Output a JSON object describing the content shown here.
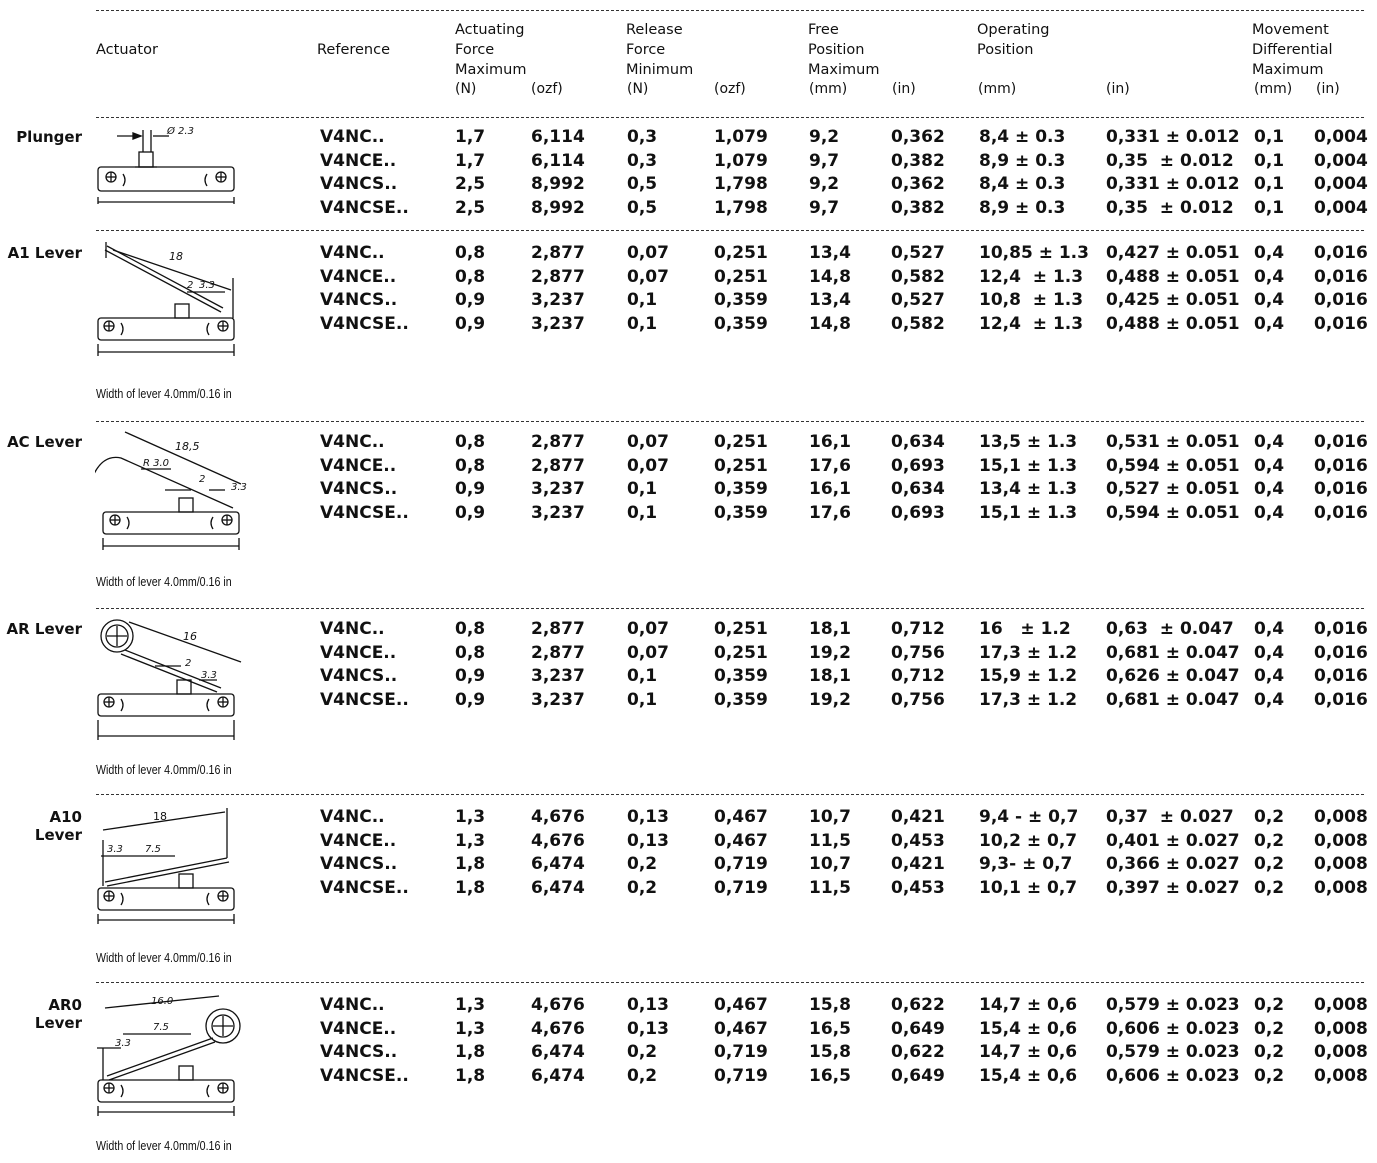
{
  "columns": {
    "actuator": "Actuator",
    "reference": "Reference",
    "actuating_force": "Actuating\nForce\nMaximum",
    "release_force": "Release\nForce\nMinimum",
    "free_position": "Free\nPosition\nMaximum",
    "operating_position": "Operating\nPosition",
    "movement_differential": "Movement\nDifferential\nMaximum",
    "units": {
      "af_n": "(N)",
      "af_ozf": "(ozf)",
      "rf_n": "(N)",
      "rf_ozf": "(ozf)",
      "fp_mm": "(mm)",
      "fp_in": "(in)",
      "op_mm": "(mm)",
      "op_in": "(in)",
      "md_mm": "(mm)",
      "md_in": "(in)"
    }
  },
  "groups": [
    {
      "label": "Plunger",
      "note": "",
      "drawing": {
        "icon": "plunger-drawing",
        "dims": [
          "Ø 2.3"
        ]
      },
      "rows": [
        [
          "V4NC..",
          "1,7",
          "6,114",
          "0,3",
          "1,079",
          "9,2",
          "0,362",
          "8,4 ± 0.3",
          "0,331 ± 0.012",
          "0,1",
          "0,004"
        ],
        [
          "V4NCE..",
          "1,7",
          "6,114",
          "0,3",
          "1,079",
          "9,7",
          "0,382",
          "8,9 ± 0.3",
          "0,35  ± 0.012",
          "0,1",
          "0,004"
        ],
        [
          "V4NCS..",
          "2,5",
          "8,992",
          "0,5",
          "1,798",
          "9,2",
          "0,362",
          "8,4 ± 0.3",
          "0,331 ± 0.012",
          "0,1",
          "0,004"
        ],
        [
          "V4NCSE..",
          "2,5",
          "8,992",
          "0,5",
          "1,798",
          "9,7",
          "0,382",
          "8,9 ± 0.3",
          "0,35  ± 0.012",
          "0,1",
          "0,004"
        ]
      ]
    },
    {
      "label": "A1 Lever",
      "note": "Width of lever 4.0mm/0.16 in",
      "drawing": {
        "icon": "a1-lever-drawing",
        "dims": [
          "18",
          "2",
          "3.3"
        ]
      },
      "rows": [
        [
          "V4NC..",
          "0,8",
          "2,877",
          "0,07",
          "0,251",
          "13,4",
          "0,527",
          "10,85 ± 1.3",
          "0,427 ± 0.051",
          "0,4",
          "0,016"
        ],
        [
          "V4NCE..",
          "0,8",
          "2,877",
          "0,07",
          "0,251",
          "14,8",
          "0,582",
          "12,4  ± 1.3",
          "0,488 ± 0.051",
          "0,4",
          "0,016"
        ],
        [
          "V4NCS..",
          "0,9",
          "3,237",
          "0,1",
          "0,359",
          "13,4",
          "0,527",
          "10,8  ± 1.3",
          "0,425 ± 0.051",
          "0,4",
          "0,016"
        ],
        [
          "V4NCSE..",
          "0,9",
          "3,237",
          "0,1",
          "0,359",
          "14,8",
          "0,582",
          "12,4  ± 1.3",
          "0,488 ± 0.051",
          "0,4",
          "0,016"
        ]
      ]
    },
    {
      "label": "AC Lever",
      "note": "Width of lever 4.0mm/0.16 in",
      "drawing": {
        "icon": "ac-lever-drawing",
        "dims": [
          "18,5",
          "R 3.0",
          "2",
          "3.3"
        ]
      },
      "rows": [
        [
          "V4NC..",
          "0,8",
          "2,877",
          "0,07",
          "0,251",
          "16,1",
          "0,634",
          "13,5 ± 1.3",
          "0,531 ± 0.051",
          "0,4",
          "0,016"
        ],
        [
          "V4NCE..",
          "0,8",
          "2,877",
          "0,07",
          "0,251",
          "17,6",
          "0,693",
          "15,1 ± 1.3",
          "0,594 ± 0.051",
          "0,4",
          "0,016"
        ],
        [
          "V4NCS..",
          "0,9",
          "3,237",
          "0,1",
          "0,359",
          "16,1",
          "0,634",
          "13,4 ± 1.3",
          "0,527 ± 0.051",
          "0,4",
          "0,016"
        ],
        [
          "V4NCSE..",
          "0,9",
          "3,237",
          "0,1",
          "0,359",
          "17,6",
          "0,693",
          "15,1 ± 1.3",
          "0,594 ± 0.051",
          "0,4",
          "0,016"
        ]
      ]
    },
    {
      "label": "AR Lever",
      "note": "Width of lever 4.0mm/0.16 in",
      "drawing": {
        "icon": "ar-lever-drawing",
        "dims": [
          "16",
          "2",
          "3.3"
        ]
      },
      "rows": [
        [
          "V4NC..",
          "0,8",
          "2,877",
          "0,07",
          "0,251",
          "18,1",
          "0,712",
          "16   ± 1.2",
          "0,63  ± 0.047",
          "0,4",
          "0,016"
        ],
        [
          "V4NCE..",
          "0,8",
          "2,877",
          "0,07",
          "0,251",
          "19,2",
          "0,756",
          "17,3 ± 1.2",
          "0,681 ± 0.047",
          "0,4",
          "0,016"
        ],
        [
          "V4NCS..",
          "0,9",
          "3,237",
          "0,1",
          "0,359",
          "18,1",
          "0,712",
          "15,9 ± 1.2",
          "0,626 ± 0.047",
          "0,4",
          "0,016"
        ],
        [
          "V4NCSE..",
          "0,9",
          "3,237",
          "0,1",
          "0,359",
          "19,2",
          "0,756",
          "17,3 ± 1.2",
          "0,681 ± 0.047",
          "0,4",
          "0,016"
        ]
      ]
    },
    {
      "label": "A10 Lever",
      "note": "Width of lever 4.0mm/0.16 in",
      "drawing": {
        "icon": "a10-lever-drawing",
        "dims": [
          "18",
          "3.3",
          "7.5"
        ]
      },
      "rows": [
        [
          "V4NC..",
          "1,3",
          "4,676",
          "0,13",
          "0,467",
          "10,7",
          "0,421",
          "9,4 - ± 0,7",
          "0,37  ± 0.027",
          "0,2",
          "0,008"
        ],
        [
          "V4NCE..",
          "1,3",
          "4,676",
          "0,13",
          "0,467",
          "11,5",
          "0,453",
          "10,2 ± 0,7",
          "0,401 ± 0.027",
          "0,2",
          "0,008"
        ],
        [
          "V4NCS..",
          "1,8",
          "6,474",
          "0,2",
          "0,719",
          "10,7",
          "0,421",
          "9,3- ± 0,7",
          "0,366 ± 0.027",
          "0,2",
          "0,008"
        ],
        [
          "V4NCSE..",
          "1,8",
          "6,474",
          "0,2",
          "0,719",
          "11,5",
          "0,453",
          "10,1 ± 0,7",
          "0,397 ± 0.027",
          "0,2",
          "0,008"
        ]
      ]
    },
    {
      "label": "AR0 Lever",
      "note": "Width of lever 4.0mm/0.16 in",
      "drawing": {
        "icon": "ar0-lever-drawing",
        "dims": [
          "16.0",
          "7.5",
          "3.3"
        ]
      },
      "rows": [
        [
          "V4NC..",
          "1,3",
          "4,676",
          "0,13",
          "0,467",
          "15,8",
          "0,622",
          "14,7 ± 0,6",
          "0,579 ± 0.023",
          "0,2",
          "0,008"
        ],
        [
          "V4NCE..",
          "1,3",
          "4,676",
          "0,13",
          "0,467",
          "16,5",
          "0,649",
          "15,4 ± 0,6",
          "0,606 ± 0.023",
          "0,2",
          "0,008"
        ],
        [
          "V4NCS..",
          "1,8",
          "6,474",
          "0,2",
          "0,719",
          "15,8",
          "0,622",
          "14,7 ± 0,6",
          "0,579 ± 0.023",
          "0,2",
          "0,008"
        ],
        [
          "V4NCSE..",
          "1,8",
          "6,474",
          "0,2",
          "0,719",
          "16,5",
          "0,649",
          "15,4 ± 0,6",
          "0,606 ± 0.023",
          "0,2",
          "0,008"
        ]
      ]
    }
  ]
}
